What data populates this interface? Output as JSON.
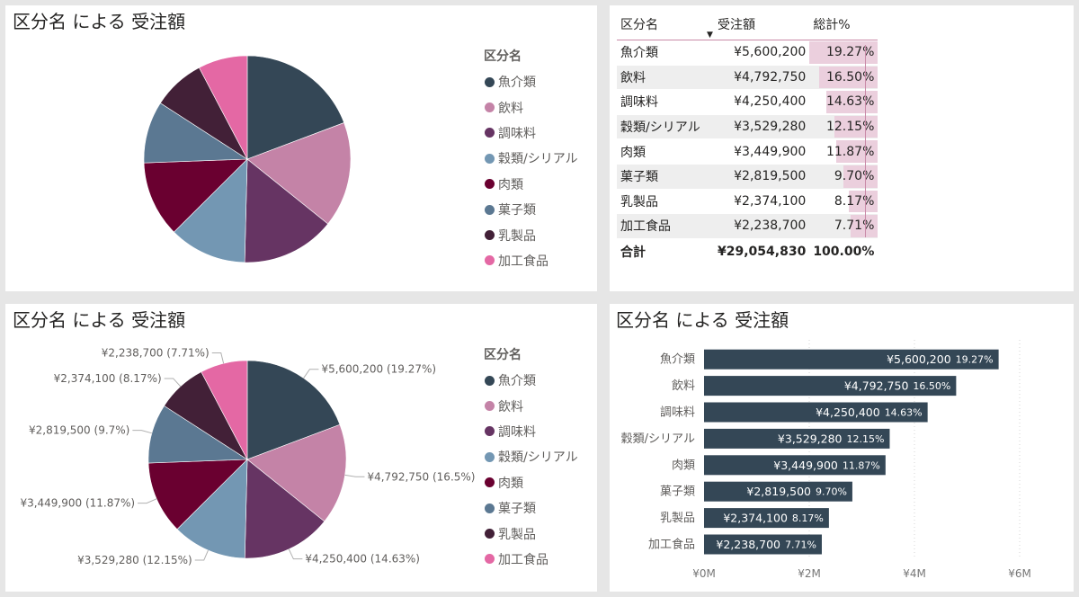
{
  "panels": {
    "pie1_title": "区分名 による 受注額",
    "pie2_title": "区分名 による 受注額",
    "bar_title": "区分名 による 受注額"
  },
  "legend": {
    "title": "区分名",
    "items": [
      {
        "label": "魚介類",
        "color": "#344756"
      },
      {
        "label": "飲料",
        "color": "#c483a7"
      },
      {
        "label": "調味料",
        "color": "#663463"
      },
      {
        "label": "穀類/シリアル",
        "color": "#7397b3"
      },
      {
        "label": "肉類",
        "color": "#6a0030"
      },
      {
        "label": "菓子類",
        "color": "#5b7892"
      },
      {
        "label": "乳製品",
        "color": "#422037"
      },
      {
        "label": "加工食品",
        "color": "#e468a4"
      }
    ]
  },
  "matrix": {
    "headers": {
      "name": "区分名",
      "amount": "受注額",
      "pct": "総計%"
    },
    "rows": [
      {
        "name": "魚介類",
        "amount": "¥5,600,200",
        "pct": "19.27%",
        "pct_value": 19.27
      },
      {
        "name": "飲料",
        "amount": "¥4,792,750",
        "pct": "16.50%",
        "pct_value": 16.5
      },
      {
        "name": "調味料",
        "amount": "¥4,250,400",
        "pct": "14.63%",
        "pct_value": 14.63
      },
      {
        "name": "穀類/シリアル",
        "amount": "¥3,529,280",
        "pct": "12.15%",
        "pct_value": 12.15
      },
      {
        "name": "肉類",
        "amount": "¥3,449,900",
        "pct": "11.87%",
        "pct_value": 11.87
      },
      {
        "name": "菓子類",
        "amount": "¥2,819,500",
        "pct": "9.70%",
        "pct_value": 9.7
      },
      {
        "name": "乳製品",
        "amount": "¥2,374,100",
        "pct": "8.17%",
        "pct_value": 8.17
      },
      {
        "name": "加工食品",
        "amount": "¥2,238,700",
        "pct": "7.71%",
        "pct_value": 7.71
      }
    ],
    "total": {
      "name": "合計",
      "amount": "¥29,054,830",
      "pct": "100.00%"
    }
  },
  "chart_data": [
    {
      "type": "pie",
      "title": "区分名 による 受注額",
      "legend_title": "区分名",
      "legend_position": "right",
      "categories": [
        "魚介類",
        "飲料",
        "調味料",
        "穀類/シリアル",
        "肉類",
        "菓子類",
        "乳製品",
        "加工食品"
      ],
      "values": [
        5600200,
        4792750,
        4250400,
        3529280,
        3449900,
        2819500,
        2374100,
        2238700
      ]
    },
    {
      "type": "pie",
      "title": "区分名 による 受注額",
      "legend_title": "区分名",
      "legend_position": "right",
      "categories": [
        "魚介類",
        "飲料",
        "調味料",
        "穀類/シリアル",
        "肉類",
        "菓子類",
        "乳製品",
        "加工食品"
      ],
      "values": [
        5600200,
        4792750,
        4250400,
        3529280,
        3449900,
        2819500,
        2374100,
        2238700
      ],
      "data_labels": [
        "¥5,600,200 (19.27%)",
        "¥4,792,750 (16.5%)",
        "¥4,250,400 (14.63%)",
        "¥3,529,280 (12.15%)",
        "¥3,449,900 (11.87%)",
        "¥2,819,500 (9.7%)",
        "¥2,374,100 (8.17%)",
        "¥2,238,700 (7.71%)"
      ]
    },
    {
      "type": "bar",
      "orientation": "horizontal",
      "title": "区分名 による 受注額",
      "categories": [
        "魚介類",
        "飲料",
        "調味料",
        "穀類/シリアル",
        "肉類",
        "菓子類",
        "乳製品",
        "加工食品"
      ],
      "values": [
        5600200,
        4792750,
        4250400,
        3529280,
        3449900,
        2819500,
        2374100,
        2238700
      ],
      "value_labels": [
        "¥5,600,200",
        "¥4,792,750",
        "¥4,250,400",
        "¥3,529,280",
        "¥3,449,900",
        "¥2,819,500",
        "¥2,374,100",
        "¥2,238,700"
      ],
      "pct_labels": [
        "19.27%",
        "16.50%",
        "14.63%",
        "12.15%",
        "11.87%",
        "9.70%",
        "8.17%",
        "7.71%"
      ],
      "color": "#344756",
      "xlim": [
        0,
        6000000
      ],
      "xticks": [
        0,
        2000000,
        4000000,
        6000000
      ],
      "xtick_labels": [
        "¥0M",
        "¥2M",
        "¥4M",
        "¥6M"
      ],
      "grid": true
    }
  ]
}
